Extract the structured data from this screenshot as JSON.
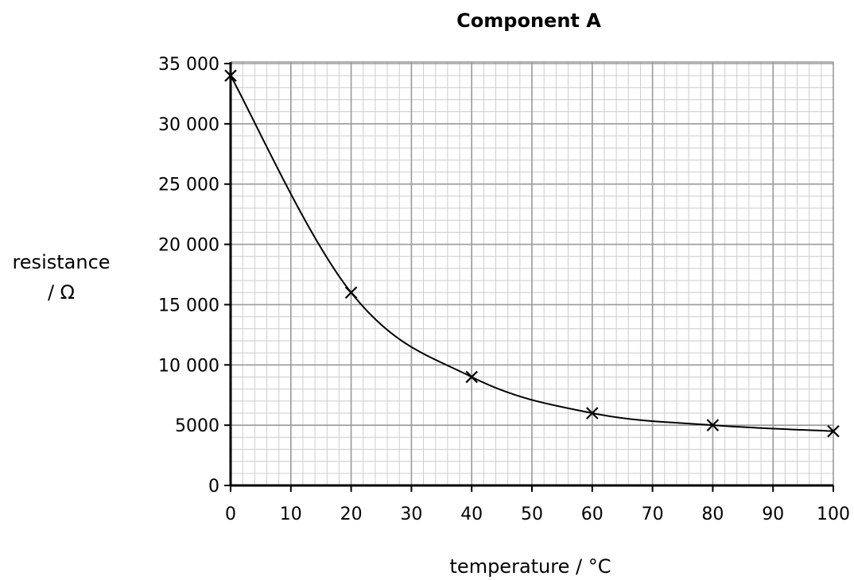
{
  "chart_data": {
    "type": "line",
    "title": "Component A",
    "xlabel": "temperature / °C",
    "ylabel_line1": "resistance",
    "ylabel_line2": "/ Ω",
    "xlim": [
      0,
      100
    ],
    "ylim": [
      0,
      35000
    ],
    "x_ticks": [
      0,
      10,
      20,
      30,
      40,
      50,
      60,
      70,
      80,
      90,
      100
    ],
    "x_tick_labels": [
      "0",
      "10",
      "20",
      "30",
      "40",
      "50",
      "60",
      "70",
      "80",
      "90",
      "100"
    ],
    "y_ticks": [
      0,
      5000,
      10000,
      15000,
      20000,
      25000,
      30000,
      35000
    ],
    "y_tick_labels": [
      "0",
      "5000",
      "10 000",
      "15 000",
      "20 000",
      "25 000",
      "30 000",
      "35 000"
    ],
    "grid": true,
    "marker": "cross",
    "series": [
      {
        "x": [
          0,
          20,
          40,
          60,
          80,
          100
        ],
        "values": [
          34000,
          16000,
          9000,
          6000,
          5000,
          4500
        ]
      }
    ],
    "colors": {
      "grid_major": "#9a9a9a",
      "grid_minor": "#cccccc",
      "axis": "#000000",
      "line": "#000000"
    }
  }
}
